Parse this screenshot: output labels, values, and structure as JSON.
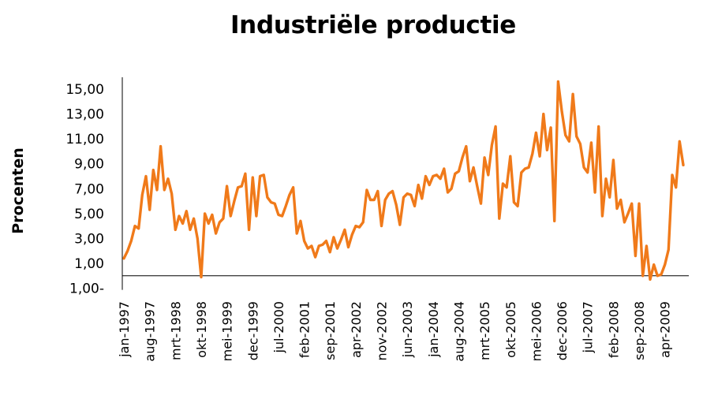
{
  "chart_data": {
    "type": "line",
    "title": "Industriële productie",
    "xlabel": "",
    "ylabel": "Procenten",
    "y_tick_labels": [
      "1,00-",
      "1,00",
      "3,00",
      "5,00",
      "7,00",
      "9,00",
      "11,00",
      "13,00",
      "15,00"
    ],
    "y_tick_values": [
      -1,
      1,
      3,
      5,
      7,
      9,
      11,
      13,
      15
    ],
    "ylim": [
      -1,
      16
    ],
    "x_tick_labels": [
      "jan-1997",
      "aug-1997",
      "mrt-1998",
      "okt-1998",
      "mei-1999",
      "dec-1999",
      "jul-2000",
      "feb-2001",
      "sep-2001",
      "apr-2002",
      "nov-2002",
      "jun-2003",
      "jan-2004",
      "aug-2004",
      "mrt-2005",
      "okt-2005",
      "mei-2006",
      "dec-2006",
      "jul-2007",
      "feb-2008",
      "sep-2008",
      "apr-2009"
    ],
    "x_start": "jan-1997",
    "x_step": "1 month",
    "series": [
      {
        "name": "Industriële productie",
        "color": "#F07A1A",
        "values": [
          1.4,
          2.0,
          2.8,
          4.0,
          3.8,
          6.5,
          8.0,
          5.3,
          8.5,
          6.9,
          10.4,
          6.9,
          7.8,
          6.6,
          3.7,
          4.8,
          4.2,
          5.2,
          3.7,
          4.6,
          3.0,
          -0.1,
          5.0,
          4.2,
          4.9,
          3.4,
          4.3,
          4.6,
          7.2,
          4.8,
          6.0,
          7.1,
          7.2,
          8.2,
          3.7,
          7.9,
          4.8,
          8.0,
          8.1,
          6.3,
          5.9,
          5.8,
          4.9,
          4.8,
          5.6,
          6.5,
          7.1,
          3.4,
          4.4,
          2.8,
          2.2,
          2.4,
          1.5,
          2.4,
          2.5,
          2.8,
          1.9,
          3.1,
          2.2,
          2.9,
          3.7,
          2.3,
          3.3,
          4.0,
          3.9,
          4.3,
          6.9,
          6.1,
          6.1,
          6.8,
          4.0,
          6.1,
          6.6,
          6.8,
          5.7,
          4.1,
          6.3,
          6.6,
          6.5,
          5.6,
          7.3,
          6.2,
          8.0,
          7.3,
          8.0,
          8.1,
          7.8,
          8.6,
          6.7,
          7.0,
          8.2,
          8.4,
          9.5,
          10.4,
          7.6,
          8.7,
          7.2,
          5.8,
          9.5,
          8.1,
          10.5,
          12.0,
          4.6,
          7.4,
          7.1,
          9.6,
          5.9,
          5.6,
          8.3,
          8.6,
          8.7,
          9.8,
          11.5,
          9.6,
          13.0,
          10.1,
          11.9,
          4.4,
          15.6,
          13.2,
          11.3,
          10.8,
          14.6,
          11.2,
          10.6,
          8.7,
          8.3,
          10.7,
          6.7,
          12.0,
          4.8,
          7.8,
          6.3,
          9.3,
          5.4,
          6.1,
          4.3,
          5.0,
          5.8,
          1.6,
          5.8,
          0.0,
          2.4,
          -0.3,
          0.9,
          0.0,
          0.1,
          0.9,
          2.1,
          8.1,
          7.1,
          10.8,
          8.9
        ]
      }
    ]
  }
}
